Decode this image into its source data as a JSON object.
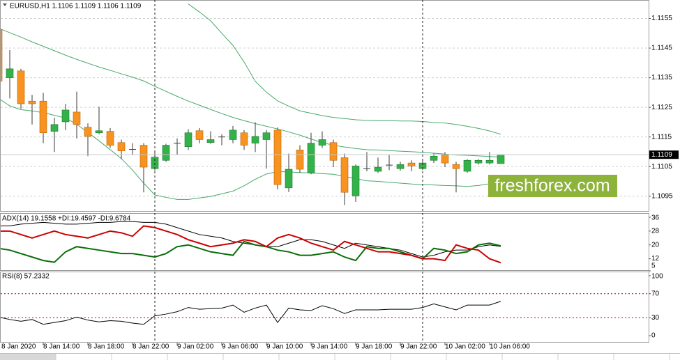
{
  "chart_data": [
    {
      "type": "candlestick",
      "title": "EURUSD,H1  1.1106 1.1109 1.1106 1.1109",
      "watermark": "freshforex.com",
      "categories": [
        "8 Jan 2020",
        null,
        null,
        null,
        "8 Jan 14:00",
        null,
        null,
        null,
        "8 Jan 18:00",
        null,
        null,
        null,
        "8 Jan 22:00",
        null,
        null,
        null,
        "9 Jan 02:00",
        null,
        null,
        null,
        "9 Jan 06:00",
        null,
        null,
        null,
        "9 Jan 10:00",
        null,
        null,
        null,
        "9 Jan 14:00",
        null,
        null,
        null,
        "9 Jan 18:00",
        null,
        null,
        null,
        "9 Jan 22:00",
        null,
        null,
        null,
        "10 Jan 02:00",
        null,
        null,
        null,
        "10 Jan 06:00",
        null
      ],
      "open": [
        1.11513,
        1.1135,
        1.11373,
        1.11271,
        1.11271,
        1.11169,
        1.11201,
        1.11234,
        1.11183,
        1.11164,
        1.11169,
        1.11131,
        1.11108,
        1.11122,
        1.11043,
        1.11071,
        1.11129,
        1.11117,
        1.11171,
        1.11131,
        1.1115,
        1.11141,
        1.11164,
        1.11129,
        1.11141,
        1.11173,
        1.10978,
        1.11106,
        1.11029,
        1.11122,
        1.11131,
        1.1108,
        1.10951,
        1.11043,
        1.11034,
        1.11055,
        1.11043,
        1.11062,
        1.11043,
        1.11071,
        1.11089,
        1.11057,
        1.11034,
        1.11062,
        1.11062,
        1.1106
      ],
      "high": [
        1.11518,
        1.11443,
        1.1138,
        1.11292,
        1.11299,
        1.11215,
        1.11262,
        1.11303,
        1.11196,
        1.11252,
        1.1118,
        1.11141,
        1.11129,
        1.11129,
        1.11099,
        1.11127,
        1.11145,
        1.11176,
        1.1118,
        1.11169,
        1.11159,
        1.11187,
        1.11173,
        1.11199,
        1.11173,
        1.11182,
        1.11094,
        1.11122,
        1.11164,
        1.11169,
        1.11141,
        1.11094,
        1.11057,
        1.11099,
        1.1108,
        1.11089,
        1.11066,
        1.11071,
        1.11071,
        1.11094,
        1.11099,
        1.11066,
        1.11075,
        1.11075,
        1.11099,
        1.1109
      ],
      "low": [
        1.11331,
        1.1128,
        1.11245,
        1.11192,
        1.11129,
        1.11099,
        1.11173,
        1.11145,
        1.11085,
        1.11159,
        1.11113,
        1.11075,
        1.11089,
        1.10963,
        1.11036,
        1.11066,
        1.11089,
        1.11106,
        1.11129,
        1.11127,
        1.11122,
        1.11129,
        1.11106,
        1.11099,
        1.11043,
        1.10973,
        1.10964,
        1.11029,
        1.11024,
        1.11113,
        1.11048,
        1.1092,
        1.10931,
        1.11034,
        1.11029,
        1.11038,
        1.11036,
        1.11034,
        1.11038,
        1.11062,
        1.11048,
        1.10963,
        1.11029,
        1.11057,
        1.11057,
        1.1106
      ],
      "close": [
        1.11338,
        1.1138,
        1.11262,
        1.11262,
        1.11164,
        1.11192,
        1.11241,
        1.11192,
        1.11152,
        1.11171,
        1.11122,
        1.11103,
        1.11108,
        1.11048,
        1.11082,
        1.11122,
        1.11129,
        1.11164,
        1.11141,
        1.11141,
        1.1115,
        1.11173,
        1.11122,
        1.11152,
        1.11164,
        1.10989,
        1.11041,
        1.11041,
        1.11129,
        1.11141,
        1.11071,
        1.10963,
        1.11052,
        1.11043,
        1.11048,
        1.11055,
        1.11057,
        1.11052,
        1.11062,
        1.11085,
        1.11062,
        1.11043,
        1.11071,
        1.11071,
        1.11071,
        1.1109
      ],
      "up_color": "#33b24a",
      "down_color": "#f7931e",
      "wick_color": "#3a3a3a",
      "overlays": [
        {
          "color": "#4aa86a",
          "values": [
            null,
            null,
            null,
            null,
            null,
            null,
            null,
            null,
            null,
            null,
            null,
            null,
            null,
            null,
            null,
            null,
            null,
            1.11599,
            1.11572,
            1.11542,
            1.115,
            1.11459,
            1.11403,
            1.11338,
            1.11301,
            1.11272,
            1.11254,
            1.11238,
            1.1123,
            1.11222,
            1.11216,
            1.11212,
            1.11208,
            1.11206,
            1.11205,
            1.11205,
            1.11204,
            1.11204,
            1.11202,
            1.11199,
            1.11197,
            1.11192,
            1.11186,
            1.11179,
            1.1117,
            1.11159
          ]
        },
        {
          "color": "#4aa86a",
          "values": [
            1.11517,
            1.11502,
            1.11487,
            1.11471,
            1.11456,
            1.11441,
            1.11426,
            1.11412,
            1.11399,
            1.11386,
            1.11375,
            1.11363,
            1.11352,
            1.11339,
            1.11321,
            1.11304,
            1.11287,
            1.11271,
            1.11257,
            1.11243,
            1.11229,
            1.11216,
            1.11205,
            1.11195,
            1.11186,
            1.11177,
            1.11167,
            1.11156,
            1.11143,
            1.11131,
            1.11122,
            1.11116,
            1.11111,
            1.11107,
            1.11106,
            1.11104,
            1.11102,
            1.111,
            1.11098,
            1.11095,
            1.11092,
            1.11089,
            1.11088,
            1.11086,
            1.11084,
            1.11082
          ]
        },
        {
          "color": "#4aa86a",
          "values": [
            1.1128,
            1.11255,
            1.11242,
            1.11238,
            1.11232,
            1.11223,
            1.11214,
            1.11193,
            1.11165,
            1.11137,
            1.11107,
            1.11077,
            1.11038,
            1.10994,
            1.10954,
            1.10946,
            1.10939,
            1.10939,
            1.10944,
            1.10949,
            1.10958,
            1.10967,
            1.10985,
            1.11007,
            1.11025,
            1.11033,
            1.11032,
            1.1103,
            1.11028,
            1.11026,
            1.11024,
            1.11017,
            1.11009,
            1.11002,
            1.11,
            1.10997,
            1.10994,
            1.10991,
            1.10989,
            1.10988,
            1.10986,
            1.10985,
            1.10983,
            1.10986,
            1.10992,
            1.10996
          ]
        }
      ],
      "ylim": [
        1.109,
        1.1161
      ],
      "yticks": [
        1.1155,
        1.1145,
        1.1135,
        1.1125,
        1.1115,
        1.1105,
        1.1095
      ],
      "grid": true
    },
    {
      "type": "line",
      "title": "ADX(14) 19.1558 +DI:19.4597 -DI:9.6784",
      "series": [
        {
          "color": "#000000",
          "values": [
            31,
            31,
            32,
            32.5,
            33,
            32.5,
            32,
            32,
            32.5,
            33,
            33,
            33.5,
            33.5,
            33,
            33,
            32,
            30,
            28,
            26,
            25,
            24,
            22,
            21,
            20,
            19,
            19,
            21,
            23,
            23,
            22,
            20,
            18,
            21,
            20,
            19,
            18,
            17,
            15,
            13,
            14,
            16,
            17,
            17,
            19,
            20,
            19.1558
          ]
        },
        {
          "color": "#0a6e0a",
          "values": [
            18,
            17,
            15,
            13,
            11,
            10,
            16,
            19,
            18,
            17,
            16,
            15,
            15,
            14,
            13,
            15,
            19,
            20,
            18,
            16,
            15,
            14,
            22,
            20,
            19,
            17,
            16,
            14,
            14,
            15,
            16,
            13,
            11,
            19,
            18,
            18,
            16,
            14,
            12,
            18,
            17,
            15,
            16,
            20,
            21,
            19.4597
          ]
        },
        {
          "color": "#cc0000",
          "values": [
            28,
            28,
            26,
            24,
            26,
            28,
            26,
            25,
            24,
            26,
            28,
            27,
            25,
            31,
            30,
            28,
            26,
            23,
            21,
            19,
            20,
            21,
            23,
            22,
            19,
            24,
            26,
            24,
            21,
            19,
            17,
            22,
            20,
            18,
            16,
            16,
            15,
            14,
            12,
            12,
            11,
            20,
            18,
            17,
            12,
            9.6784
          ]
        }
      ],
      "ylim": [
        5,
        38
      ],
      "yticks": [
        36,
        28,
        20,
        12,
        5
      ]
    },
    {
      "type": "line",
      "title": "RSI(8) 57.2332",
      "series": [
        {
          "color": "#000000",
          "values": [
            31,
            27,
            24,
            27,
            19,
            22,
            25,
            31,
            26,
            23,
            25,
            24,
            21,
            19,
            33,
            36,
            40,
            47,
            44,
            45,
            46,
            51,
            39,
            46,
            51,
            22,
            46,
            43,
            42,
            50,
            45,
            37,
            43,
            43,
            43,
            44,
            44,
            44,
            47,
            53,
            48,
            43,
            51,
            51,
            51,
            57.2332
          ]
        }
      ],
      "ylim": [
        -11.5,
        105.7
      ],
      "yticks": [
        100,
        70,
        30,
        0
      ],
      "levels": [
        70,
        30
      ],
      "level_color": "#c00000"
    }
  ]
}
